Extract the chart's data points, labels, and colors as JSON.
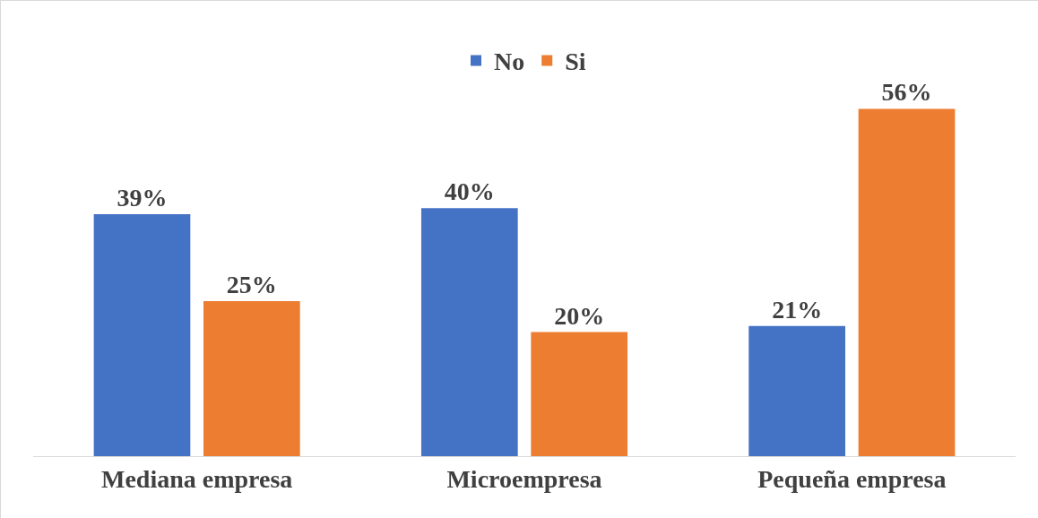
{
  "chart_data": {
    "type": "bar",
    "categories": [
      "Mediana empresa",
      "Microempresa",
      "Pequeña empresa"
    ],
    "series": [
      {
        "name": "No",
        "color": "#4472c4",
        "values": [
          39,
          40,
          21
        ],
        "value_labels": [
          "39%",
          "40%",
          "21%"
        ]
      },
      {
        "name": "Si",
        "color": "#ed7d31",
        "values": [
          25,
          20,
          56
        ],
        "value_labels": [
          "25%",
          "20%",
          "56%"
        ]
      }
    ],
    "legend": "top",
    "grid": false,
    "tick_labels": "x"
  }
}
